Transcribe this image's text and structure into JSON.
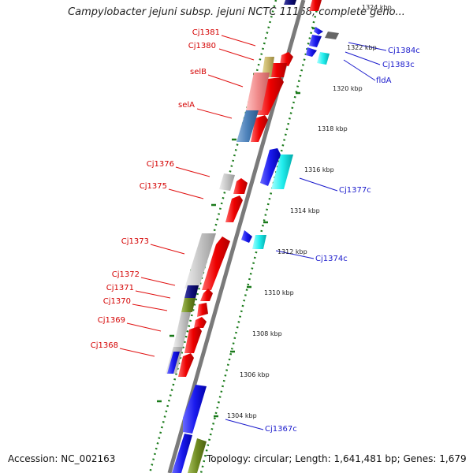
{
  "title": "Campylobacter jejuni subsp. jejuni NCTC 11168, complete geno...",
  "accession": "Accession: NC_002163",
  "summary": "Topology: circular; Length: 1,641,481 bp; Genes: 1,679",
  "colors": {
    "forward_strand": "#ee0000",
    "reverse_strand": "#1a1aee",
    "axis": "#7a7a7a",
    "tick": "#1a7a1a",
    "label_forward": "#d40000",
    "label_reverse": "#1a1acc",
    "leader_forward": "#e01010",
    "leader_reverse": "#1a1acc"
  },
  "kbp_ticks": [
    "1324 kbp",
    "1322 kbp",
    "1320 kbp",
    "1318 kbp",
    "1316 kbp",
    "1314 kbp",
    "1312 kbp",
    "1310 kbp",
    "1308 kbp",
    "1306 kbp",
    "1304 kbp"
  ],
  "forward_labels": [
    "Cj1381",
    "Cj1380",
    "selB",
    "selA",
    "Cj1376",
    "Cj1375",
    "Cj1373",
    "Cj1372",
    "Cj1371",
    "Cj1370",
    "Cj1369",
    "Cj1368"
  ],
  "reverse_labels": [
    "Cj1384c",
    "Cj1383c",
    "fldA",
    "Cj1377c",
    "Cj1374c",
    "Cj1367c"
  ]
}
